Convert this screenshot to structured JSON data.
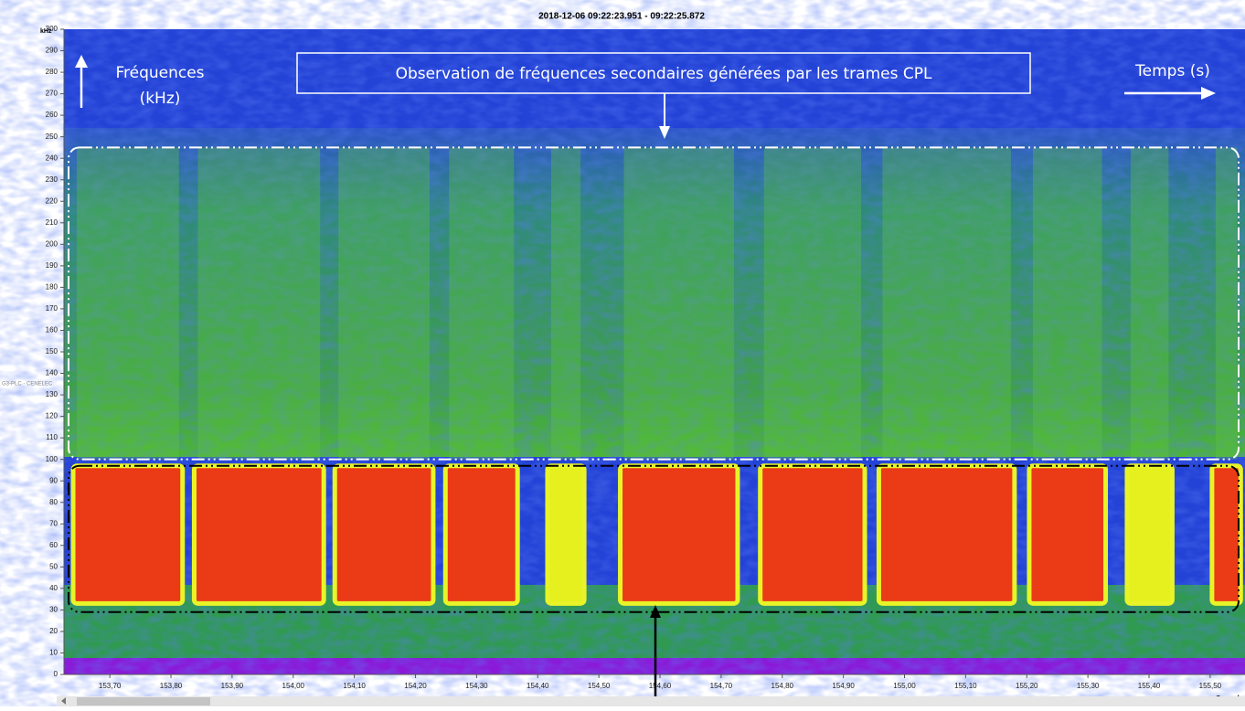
{
  "chart_data": {
    "type": "spectrogram",
    "title": "2018-12-06 09:22:23.951 - 09:22:25.872",
    "y_label": "kHz",
    "x_label": "Seconds",
    "side_label": "G3-PLC - CENELEC",
    "annotations": {
      "freq_line1": "Fréquences",
      "freq_line2": "(kHz)",
      "time": "Temps (s)",
      "observation": "Observation de fréquences secondaires générées par les trames CPL"
    },
    "ylim": [
      0,
      300
    ],
    "yticks": [
      0,
      10,
      20,
      30,
      40,
      50,
      60,
      70,
      80,
      90,
      100,
      110,
      120,
      130,
      140,
      150,
      160,
      170,
      180,
      190,
      200,
      210,
      220,
      230,
      240,
      250,
      260,
      270,
      280,
      290,
      300
    ],
    "xlim": [
      153.625,
      155.557
    ],
    "xticks": [
      {
        "value": 153.7,
        "label": "153,70"
      },
      {
        "value": 153.8,
        "label": "153,80"
      },
      {
        "value": 153.9,
        "label": "153,90"
      },
      {
        "value": 154.0,
        "label": "154,00"
      },
      {
        "value": 154.1,
        "label": "154,10"
      },
      {
        "value": 154.2,
        "label": "154,20"
      },
      {
        "value": 154.3,
        "label": "154,30"
      },
      {
        "value": 154.4,
        "label": "154,40"
      },
      {
        "value": 154.5,
        "label": "154,50"
      },
      {
        "value": 154.6,
        "label": "154,60"
      },
      {
        "value": 154.7,
        "label": "154,70"
      },
      {
        "value": 154.8,
        "label": "154,80"
      },
      {
        "value": 154.9,
        "label": "154,90"
      },
      {
        "value": 155.0,
        "label": "155,00"
      },
      {
        "value": 155.1,
        "label": "155,10"
      },
      {
        "value": 155.2,
        "label": "155,20"
      },
      {
        "value": 155.3,
        "label": "155,30"
      },
      {
        "value": 155.4,
        "label": "155,40"
      },
      {
        "value": 155.5,
        "label": "155,50"
      }
    ],
    "bursts": [
      {
        "start": 153.64,
        "end": 153.819,
        "fmin": 33,
        "fmax": 97,
        "color": "#ea3a16"
      },
      {
        "start": 153.838,
        "end": 154.05,
        "fmin": 33,
        "fmax": 97,
        "color": "#ea3a16"
      },
      {
        "start": 154.068,
        "end": 154.229,
        "fmin": 33,
        "fmax": 97,
        "color": "#ea3a16"
      },
      {
        "start": 154.249,
        "end": 154.367,
        "fmin": 33,
        "fmax": 97,
        "color": "#ea3a16"
      },
      {
        "start": 154.416,
        "end": 154.476,
        "fmin": 33,
        "fmax": 97,
        "color": "#e6f01e"
      },
      {
        "start": 154.535,
        "end": 154.727,
        "fmin": 33,
        "fmax": 97,
        "color": "#ea3a16"
      },
      {
        "start": 154.764,
        "end": 154.935,
        "fmin": 33,
        "fmax": 97,
        "color": "#ea3a16"
      },
      {
        "start": 154.958,
        "end": 155.18,
        "fmin": 33,
        "fmax": 97,
        "color": "#ea3a16"
      },
      {
        "start": 155.204,
        "end": 155.329,
        "fmin": 33,
        "fmax": 97,
        "color": "#ea3a16"
      },
      {
        "start": 155.364,
        "end": 155.438,
        "fmin": 33,
        "fmax": 97,
        "color": "#e6f01e"
      },
      {
        "start": 155.503,
        "end": 155.55,
        "fmin": 33,
        "fmax": 97,
        "color": "#ea3a16"
      }
    ],
    "regions": [
      {
        "ymin": 100,
        "ymax": 245,
        "color": "#ffffff"
      },
      {
        "ymin": 29,
        "ymax": 97,
        "color": "#000000"
      }
    ]
  }
}
